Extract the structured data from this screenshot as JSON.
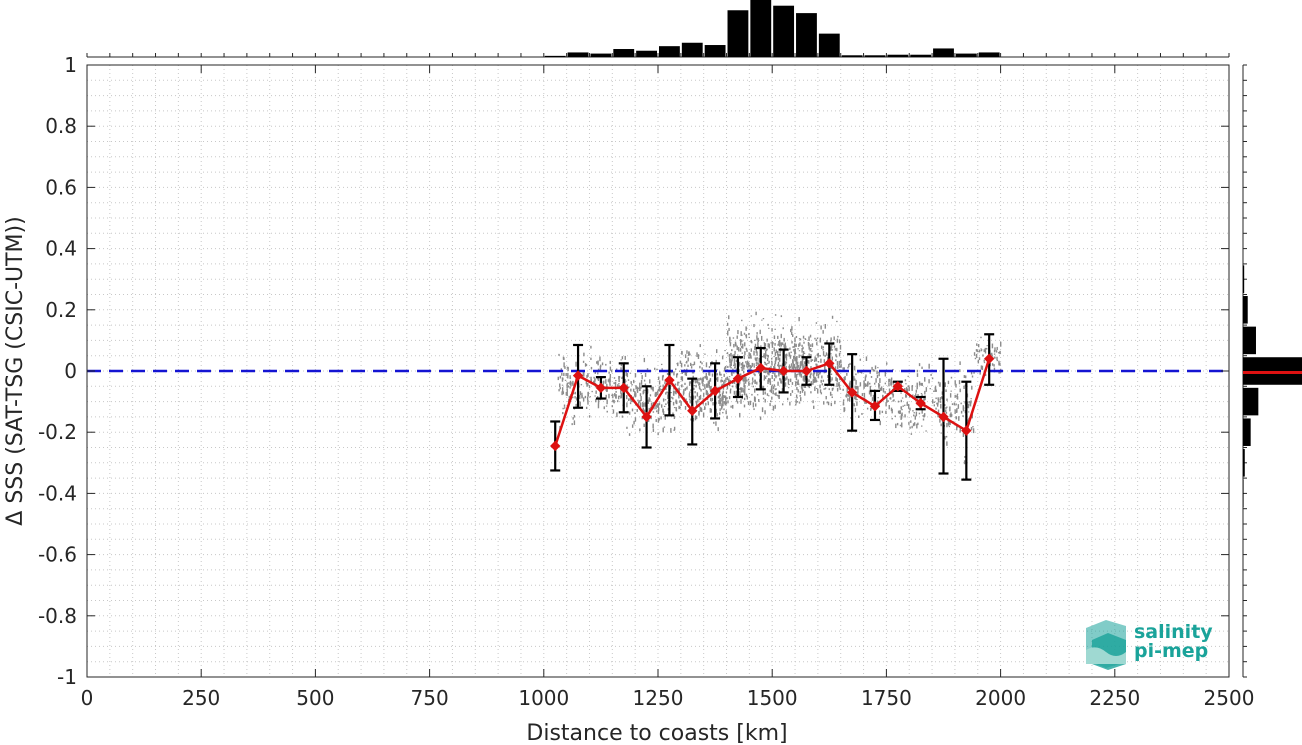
{
  "chart_data": {
    "type": "line",
    "title": "",
    "xlabel": "Distance to coasts [km]",
    "ylabel": "Δ SSS (SAT-TSG (CSIC-UTM))",
    "xlim": [
      0,
      2500
    ],
    "ylim": [
      -1,
      1
    ],
    "xticks": [
      0,
      250,
      500,
      750,
      1000,
      1250,
      1500,
      1750,
      2000,
      2250,
      2500
    ],
    "yticks": [
      1,
      0.8,
      0.6,
      0.4,
      0.2,
      0,
      -0.2,
      -0.4,
      -0.6,
      -0.8,
      -1
    ],
    "ytick_labels": [
      "1",
      "0.8",
      "0.6",
      "0.4",
      "0.2",
      "0",
      "-0.2",
      "-0.4",
      "-0.6",
      "-0.8",
      "-1"
    ],
    "grid": true,
    "reference_line": {
      "y": 0,
      "style": "dashed",
      "color": "#1414d2"
    },
    "series": [
      {
        "color": "#dd1111",
        "x": [
          1025,
          1075,
          1125,
          1175,
          1225,
          1275,
          1325,
          1375,
          1425,
          1475,
          1525,
          1575,
          1625,
          1675,
          1725,
          1775,
          1825,
          1875,
          1925,
          1975
        ],
        "y": [
          -0.245,
          -0.015,
          -0.055,
          -0.055,
          -0.15,
          -0.03,
          -0.13,
          -0.065,
          -0.025,
          0.01,
          0.0,
          0.0,
          0.025,
          -0.07,
          -0.115,
          -0.05,
          -0.105,
          -0.15,
          -0.195,
          0.04
        ],
        "err_low": [
          -0.325,
          -0.12,
          -0.09,
          -0.135,
          -0.25,
          -0.145,
          -0.24,
          -0.155,
          -0.085,
          -0.06,
          -0.07,
          -0.045,
          -0.045,
          -0.195,
          -0.16,
          -0.065,
          -0.125,
          -0.335,
          -0.355,
          -0.045
        ],
        "err_high": [
          -0.165,
          0.085,
          -0.02,
          0.025,
          -0.05,
          0.085,
          -0.025,
          0.025,
          0.045,
          0.075,
          0.07,
          0.045,
          0.09,
          0.055,
          -0.065,
          -0.035,
          -0.085,
          0.04,
          -0.035,
          0.12
        ]
      }
    ],
    "scatter_clusters": [
      {
        "x": [
          1030,
          1070
        ],
        "ymid": -0.06,
        "spread": 0.16,
        "n": 70
      },
      {
        "x": [
          1070,
          1180
        ],
        "ymid": -0.04,
        "spread": 0.14,
        "n": 160
      },
      {
        "x": [
          1180,
          1290
        ],
        "ymid": -0.08,
        "spread": 0.15,
        "n": 200
      },
      {
        "x": [
          1290,
          1400
        ],
        "ymid": -0.05,
        "spread": 0.16,
        "n": 260
      },
      {
        "x": [
          1400,
          1520
        ],
        "ymid": 0.02,
        "spread": 0.2,
        "n": 420
      },
      {
        "x": [
          1520,
          1650
        ],
        "ymid": 0.02,
        "spread": 0.17,
        "n": 380
      },
      {
        "x": [
          1650,
          1760
        ],
        "ymid": -0.06,
        "spread": 0.13,
        "n": 150
      },
      {
        "x": [
          1760,
          1880
        ],
        "ymid": -0.1,
        "spread": 0.16,
        "n": 150
      },
      {
        "x": [
          1880,
          1940
        ],
        "ymid": -0.12,
        "spread": 0.2,
        "n": 90
      },
      {
        "x": [
          1940,
          2000
        ],
        "ymid": 0.05,
        "spread": 0.08,
        "n": 60
      }
    ],
    "top_histogram": {
      "bin_width": 50,
      "bins_start": [
        1000,
        1050,
        1100,
        1150,
        1200,
        1250,
        1300,
        1350,
        1400,
        1450,
        1500,
        1550,
        1600,
        1650,
        1700,
        1750,
        1800,
        1850,
        1900,
        1950
      ],
      "relative_heights": [
        0.02,
        0.08,
        0.06,
        0.14,
        0.11,
        0.19,
        0.25,
        0.21,
        0.82,
        1.0,
        0.9,
        0.77,
        0.41,
        0.03,
        0.03,
        0.04,
        0.04,
        0.15,
        0.06,
        0.08
      ]
    },
    "right_histogram": {
      "bin_width": 0.05,
      "bins_center": [
        0.3,
        0.2,
        0.1,
        0.0,
        -0.1,
        -0.2,
        -0.3,
        -0.4
      ],
      "relative_lengths": [
        0.02,
        0.08,
        0.22,
        1.0,
        0.26,
        0.13,
        0.03,
        0.01
      ],
      "mean_line": {
        "y": -0.005,
        "color": "#dd1111"
      }
    },
    "logo": {
      "line1": "salinity",
      "line2": "pi-mep"
    }
  }
}
